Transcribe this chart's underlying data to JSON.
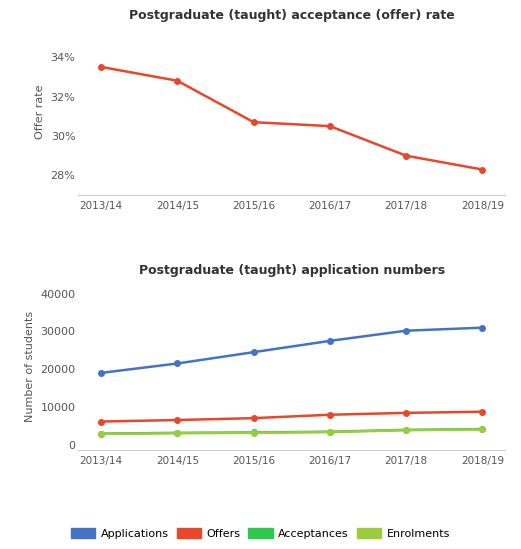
{
  "years": [
    "2013/14",
    "2014/15",
    "2015/16",
    "2016/17",
    "2017/18",
    "2018/19"
  ],
  "offer_rate": [
    33.5,
    32.8,
    30.7,
    30.5,
    29.0,
    28.3
  ],
  "applications": [
    19000,
    21500,
    24500,
    27500,
    30200,
    31000
  ],
  "offers": [
    6100,
    6500,
    7000,
    7900,
    8400,
    8700
  ],
  "acceptances": [
    2900,
    3100,
    3200,
    3400,
    3900,
    4100
  ],
  "enrolments": [
    2800,
    3000,
    3100,
    3300,
    3800,
    4000
  ],
  "title1": "Postgraduate (taught) acceptance (offer) rate",
  "title2": "Postgraduate (taught) application numbers",
  "ylabel1": "Offer rate",
  "ylabel2": "Number of students",
  "color_offer_rate": "#e8472a",
  "color_applications": "#4472c4",
  "color_offers": "#e8472a",
  "color_acceptances": "#2dc84d",
  "color_enrolments": "#9ccc3d",
  "legend_labels": [
    "Applications",
    "Offers",
    "Acceptances",
    "Enrolments"
  ],
  "bg_color": "#ffffff",
  "ylim1": [
    27.0,
    35.5
  ],
  "ylim2": [
    -1500,
    43000
  ],
  "yticks1": [
    28,
    30,
    32,
    34
  ],
  "yticks2": [
    0,
    10000,
    20000,
    30000,
    40000
  ]
}
